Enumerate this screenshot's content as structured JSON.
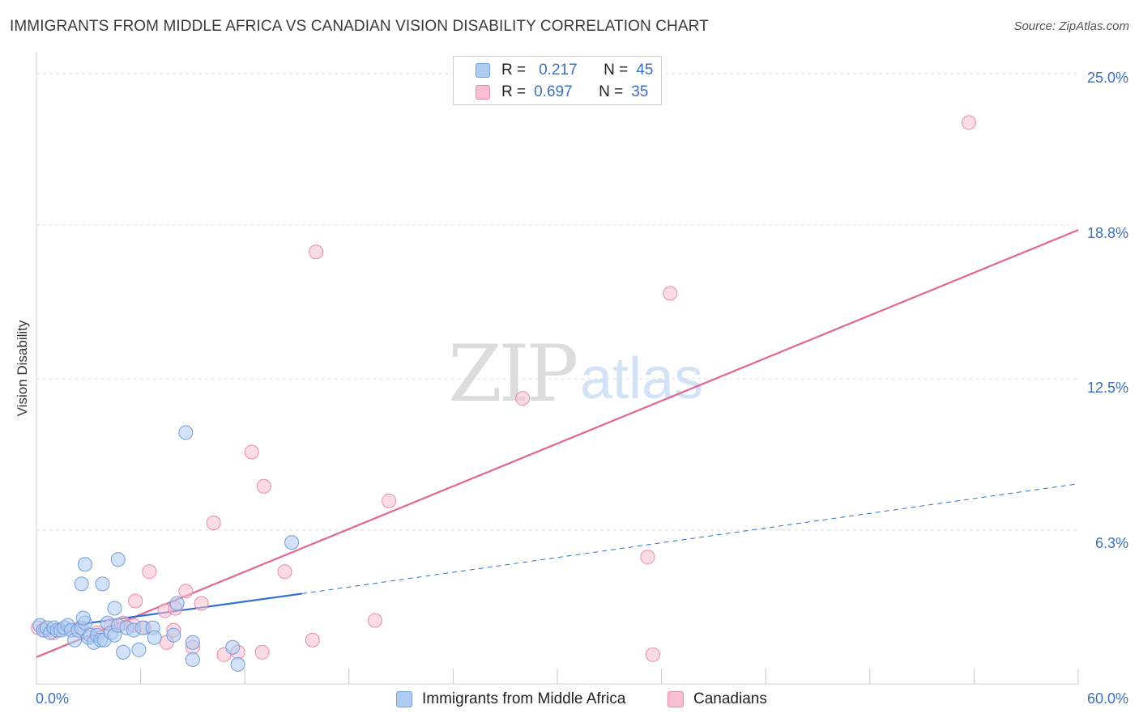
{
  "title": "IMMIGRANTS FROM MIDDLE AFRICA VS CANADIAN VISION DISABILITY CORRELATION CHART",
  "source": "Source: ZipAtlas.com",
  "watermark": {
    "zip": "ZIP",
    "atlas": "atlas"
  },
  "legend": {
    "series1": {
      "r_label": "R =",
      "r_value": "0.217",
      "n_label": "N =",
      "n_value": "45"
    },
    "series2": {
      "r_label": "R =",
      "r_value": "0.697",
      "n_label": "N =",
      "n_value": "35"
    }
  },
  "bottom_legend": {
    "series1": "Immigrants from Middle Africa",
    "series2": "Canadians"
  },
  "y_tick_labels": [
    "25.0%",
    "18.8%",
    "12.5%",
    "6.3%"
  ],
  "x_tick_labels": {
    "min": "0.0%",
    "max": "60.0%"
  },
  "colors": {
    "blue_fill": "#aecbf2",
    "blue_stroke": "#6f9fdc",
    "blue_line": "#2e6fd0",
    "pink_fill": "#f7bfd0",
    "pink_stroke": "#e98aa8",
    "pink_line": "#e06594",
    "accent_text": "#3a6fc4",
    "grid": "#dcdcdc"
  },
  "chart_data": {
    "type": "scatter",
    "title": "IMMIGRANTS FROM MIDDLE AFRICA VS CANADIAN VISION DISABILITY CORRELATION CHART",
    "xlabel": "",
    "ylabel": "Vision Disability",
    "xlim": [
      0,
      60
    ],
    "ylim": [
      0,
      25.7
    ],
    "y_ticks": [
      6.3,
      12.5,
      18.8,
      25.0
    ],
    "legend_position": "top-center",
    "series": [
      {
        "name": "Immigrants from Middle Africa",
        "color": "blue",
        "r": 0.217,
        "n": 45,
        "trend_solid": {
          "x": [
            0,
            15.3
          ],
          "y": [
            2.2,
            3.7
          ]
        },
        "trend_dashed": {
          "x": [
            15.3,
            60
          ],
          "y": [
            3.7,
            8.2
          ]
        },
        "points": [
          [
            0.2,
            2.4
          ],
          [
            0.4,
            2.2
          ],
          [
            0.6,
            2.3
          ],
          [
            0.8,
            2.1
          ],
          [
            1.0,
            2.3
          ],
          [
            1.2,
            2.2
          ],
          [
            1.4,
            2.2
          ],
          [
            1.6,
            2.3
          ],
          [
            1.8,
            2.4
          ],
          [
            2.0,
            2.2
          ],
          [
            2.2,
            1.8
          ],
          [
            2.4,
            2.2
          ],
          [
            2.6,
            2.3
          ],
          [
            2.8,
            2.5
          ],
          [
            3.0,
            1.9
          ],
          [
            3.1,
            2.0
          ],
          [
            3.3,
            1.7
          ],
          [
            3.5,
            2.0
          ],
          [
            3.7,
            1.8
          ],
          [
            3.9,
            1.8
          ],
          [
            4.1,
            2.5
          ],
          [
            4.3,
            2.1
          ],
          [
            4.5,
            2.0
          ],
          [
            4.7,
            2.4
          ],
          [
            5.2,
            2.3
          ],
          [
            5.6,
            2.2
          ],
          [
            6.1,
            2.3
          ],
          [
            2.7,
            2.7
          ],
          [
            4.5,
            3.1
          ],
          [
            2.6,
            4.1
          ],
          [
            3.8,
            4.1
          ],
          [
            2.8,
            4.9
          ],
          [
            4.7,
            5.1
          ],
          [
            5.0,
            1.3
          ],
          [
            5.9,
            1.4
          ],
          [
            6.7,
            2.3
          ],
          [
            6.8,
            1.9
          ],
          [
            8.1,
            3.3
          ],
          [
            7.9,
            2.0
          ],
          [
            8.6,
            10.3
          ],
          [
            9.0,
            1.7
          ],
          [
            9.0,
            1.0
          ],
          [
            11.3,
            1.5
          ],
          [
            11.6,
            0.8
          ],
          [
            14.7,
            5.8
          ]
        ]
      },
      {
        "name": "Canadians",
        "color": "pink",
        "r": 0.697,
        "n": 35,
        "trend": {
          "x": [
            0,
            60
          ],
          "y": [
            1.1,
            18.6
          ]
        },
        "points": [
          [
            0.1,
            2.3
          ],
          [
            0.5,
            2.2
          ],
          [
            1.0,
            2.1
          ],
          [
            2.0,
            2.2
          ],
          [
            2.5,
            2.3
          ],
          [
            3.5,
            2.1
          ],
          [
            4.3,
            2.4
          ],
          [
            5.0,
            2.5
          ],
          [
            5.6,
            2.4
          ],
          [
            6.2,
            2.3
          ],
          [
            5.7,
            3.4
          ],
          [
            6.5,
            4.6
          ],
          [
            7.4,
            3.0
          ],
          [
            7.5,
            1.7
          ],
          [
            7.9,
            2.2
          ],
          [
            8.0,
            3.1
          ],
          [
            8.6,
            3.8
          ],
          [
            9.0,
            1.5
          ],
          [
            9.5,
            3.3
          ],
          [
            10.2,
            6.6
          ],
          [
            10.8,
            1.2
          ],
          [
            11.6,
            1.3
          ],
          [
            12.4,
            9.5
          ],
          [
            13.0,
            1.3
          ],
          [
            13.1,
            8.1
          ],
          [
            14.3,
            4.6
          ],
          [
            16.1,
            17.7
          ],
          [
            15.9,
            1.8
          ],
          [
            19.5,
            2.6
          ],
          [
            20.3,
            7.5
          ],
          [
            28.0,
            11.7
          ],
          [
            35.2,
            5.2
          ],
          [
            35.5,
            1.2
          ],
          [
            36.5,
            16.0
          ],
          [
            53.7,
            23.0
          ]
        ]
      }
    ]
  }
}
